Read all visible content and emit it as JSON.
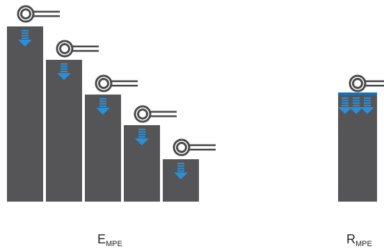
{
  "colors": {
    "bar": "#555456",
    "key": "#4a494b",
    "arrow": "#2a8fd6",
    "arrow_dark": "#1b6fae",
    "background": "#ffffff"
  },
  "icons": {
    "key": "key-icon",
    "arrow": "down-arrow-icon"
  },
  "captions": {
    "empe": {
      "main": "E",
      "sub": "MPE"
    },
    "rmpe": {
      "main": "R",
      "sub": "MPE"
    }
  }
}
